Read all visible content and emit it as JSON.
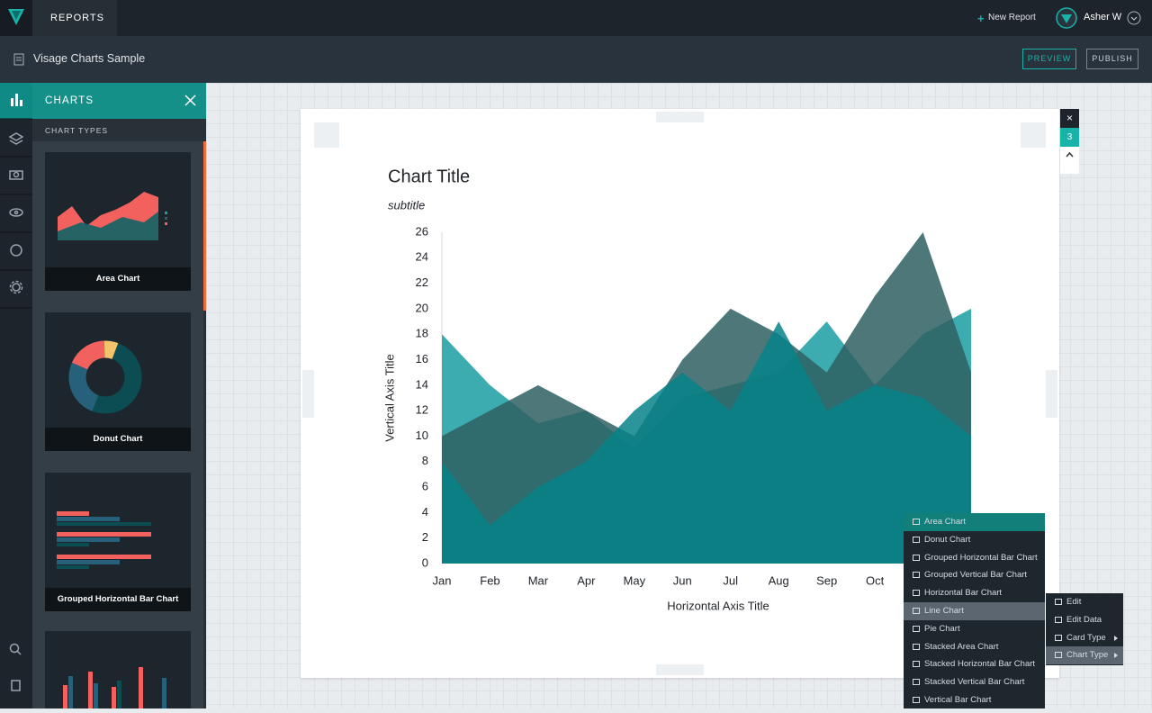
{
  "top_bar": {
    "section": "REPORTS",
    "new_report": "New Report",
    "user": "Asher W"
  },
  "toolbar": {
    "document_title": "Visage Charts Sample",
    "preview": "PREVIEW",
    "publish": "PUBLISH"
  },
  "panel": {
    "title": "CHARTS",
    "section": "CHART TYPES",
    "items": [
      "Area Chart",
      "Donut Chart",
      "Grouped Horizontal Bar Chart"
    ]
  },
  "card": {
    "badge": "3"
  },
  "chart_data": {
    "type": "area",
    "title": "Chart Title",
    "subtitle": "subtitle",
    "x_title": "Horizontal Axis Title",
    "y_title": "Vertical Axis Title",
    "categories": [
      "Jan",
      "Feb",
      "Mar",
      "Apr",
      "May",
      "Jun",
      "Jul",
      "Aug",
      "Sep",
      "Oct",
      null,
      null
    ],
    "series": [
      {
        "color": "#1a9ea3",
        "values": [
          18,
          14,
          11,
          12,
          9,
          13,
          14,
          15,
          19,
          14,
          18,
          20
        ]
      },
      {
        "color": "#2e5f62",
        "values": [
          10,
          12,
          14,
          12,
          10,
          16,
          20,
          18,
          15,
          21,
          26,
          15
        ]
      },
      {
        "color": "#06838a",
        "values": [
          8,
          3,
          6,
          8,
          12,
          15,
          12,
          19,
          12,
          14,
          13,
          10
        ]
      }
    ],
    "ylim": [
      0,
      26
    ],
    "yticks": [
      0,
      2,
      4,
      6,
      8,
      10,
      12,
      14,
      16,
      18,
      20,
      22,
      24,
      26
    ],
    "grid": false
  },
  "context_menu": {
    "items": [
      "Area Chart",
      "Donut Chart",
      "Grouped Horizontal Bar Chart",
      "Grouped Vertical Bar Chart",
      "Horizontal Bar Chart",
      "Line Chart",
      "Pie Chart",
      "Stacked Area Chart",
      "Stacked Horizontal Bar Chart",
      "Stacked Vertical Bar Chart",
      "Vertical Bar Chart"
    ],
    "submenu": [
      "Edit",
      "Edit Data",
      "Card Type",
      "Chart Type"
    ]
  }
}
